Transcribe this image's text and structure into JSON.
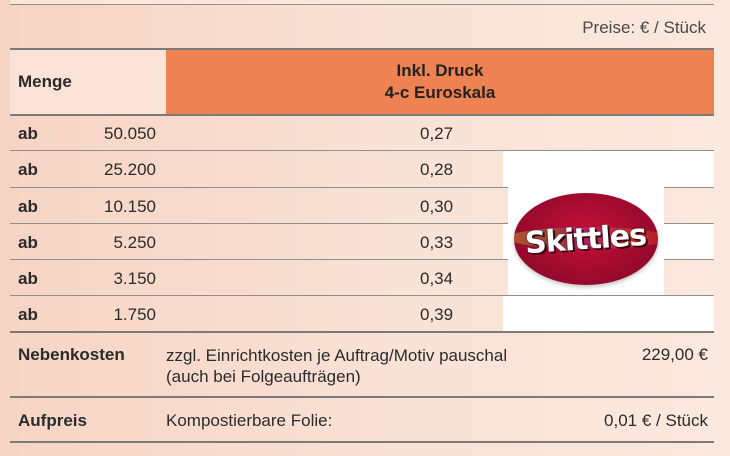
{
  "price_note": "Preise: € / Stück",
  "header": {
    "quantity_label": "Menge",
    "print_line1": "Inkl. Druck",
    "print_line2": "4-c Euroskala"
  },
  "rows": [
    {
      "prefix": "ab",
      "quantity": "50.050",
      "price": "0,27"
    },
    {
      "prefix": "ab",
      "quantity": "25.200",
      "price": "0,28"
    },
    {
      "prefix": "ab",
      "quantity": "10.150",
      "price": "0,30"
    },
    {
      "prefix": "ab",
      "quantity": "5.250",
      "price": "0,33"
    },
    {
      "prefix": "ab",
      "quantity": "3.150",
      "price": "0,34"
    },
    {
      "prefix": "ab",
      "quantity": "1.750",
      "price": "0,39"
    }
  ],
  "logo": {
    "brand": "Skittles",
    "colors": {
      "oval": "#b10d33",
      "text": "#ffffff"
    }
  },
  "extra_costs": {
    "label": "Nebenkosten",
    "line1": "zzgl. Einrichtkosten je Auftrag/Motiv pauschal",
    "line2": "(auch bei Folgeaufträgen)",
    "amount": "229,00 €"
  },
  "surcharge": {
    "label": "Aufpreis",
    "description": "Kompostierbare Folie:",
    "amount": "0,01 € / Stück"
  },
  "colors": {
    "header_accent": "#ee8253",
    "background": "#f8dccd"
  }
}
